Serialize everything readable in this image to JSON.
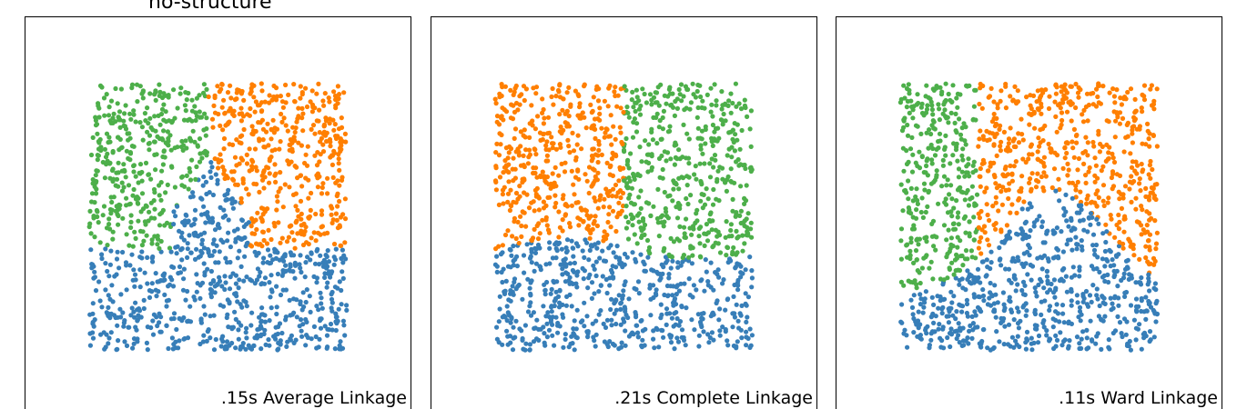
{
  "row_title": "no-structure",
  "colors": {
    "blue": "#377eb8",
    "orange": "#ff7f00",
    "green": "#4daf4a"
  },
  "chart_data": [
    {
      "type": "scatter",
      "title": "",
      "annotation": ".15s Average Linkage",
      "xlim": [
        -0.25,
        1.25
      ],
      "ylim": [
        -0.25,
        1.25
      ],
      "axes_visible": false,
      "points_per_panel": 1500,
      "series": [
        {
          "color": "#377eb8",
          "region": "bottom half plus central wedge up to y≈0.7 around x≈0.45"
        },
        {
          "color": "#4daf4a",
          "region": "upper-left block, x<≈0.45, y>≈0.4"
        },
        {
          "color": "#ff7f00",
          "region": "upper-right block, x>≈0.48, y>≈0.45"
        }
      ]
    },
    {
      "type": "scatter",
      "title": "",
      "annotation": ".21s Complete Linkage",
      "xlim": [
        -0.25,
        1.25
      ],
      "ylim": [
        -0.25,
        1.25
      ],
      "axes_visible": false,
      "points_per_panel": 1500,
      "series": [
        {
          "color": "#377eb8",
          "region": "bottom band, y<≈0.38"
        },
        {
          "color": "#ff7f00",
          "region": "upper-left block, x<≈0.5, y>≈0.38"
        },
        {
          "color": "#4daf4a",
          "region": "upper-right block, x>≈0.5, y>≈0.38"
        }
      ]
    },
    {
      "type": "scatter",
      "title": "",
      "annotation": ".11s Ward Linkage",
      "xlim": [
        -0.25,
        1.25
      ],
      "ylim": [
        -0.25,
        1.25
      ],
      "axes_visible": false,
      "points_per_panel": 1500,
      "series": [
        {
          "color": "#377eb8",
          "region": "bottom half rising to y≈0.6 in middle"
        },
        {
          "color": "#4daf4a",
          "region": "upper-left block, x<≈0.3"
        },
        {
          "color": "#ff7f00",
          "region": "upper-right block, x>≈0.3, y>≈0.55"
        }
      ]
    }
  ]
}
